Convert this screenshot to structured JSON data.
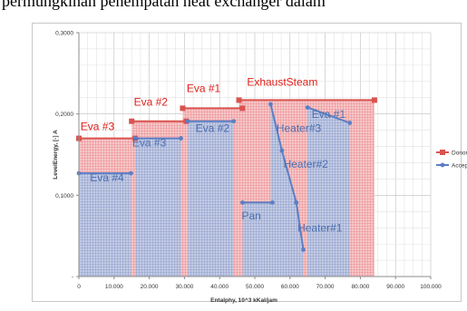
{
  "caption_fragment": "permungkinan penempatan heat exchanger dalam",
  "chart_data": {
    "type": "area",
    "title": "",
    "xlabel": "Entalphy, 10^3 kKal/jam",
    "ylabel": "LevelEnergy, [-] A",
    "xlim": [
      0,
      100000
    ],
    "ylim": [
      0,
      0.3
    ],
    "x_ticks": [
      "0",
      "10.000",
      "20.000",
      "30.000",
      "40.000",
      "50.000",
      "60.000",
      "70.000",
      "80.000",
      "90.000",
      "100.000"
    ],
    "y_ticks": [
      "-",
      "0,1000",
      "0,2000",
      "0,3000"
    ],
    "grid": true,
    "legend_position": "right",
    "colors": {
      "donor": "#d9534f",
      "acceptor": "#5b7fc4",
      "donor_label": "#e0201a",
      "acceptor_label": "#4a6fb0"
    },
    "series": [
      {
        "name": "Donor",
        "segments": [
          {
            "label": "Eva #3",
            "x": [
              0,
              16000
            ],
            "y": [
              0.17,
              0.17
            ]
          },
          {
            "label": "Eva #2",
            "x": [
              15000,
              30500
            ],
            "y": [
              0.191,
              0.191
            ]
          },
          {
            "label": "Eva #1",
            "x": [
              29500,
              46500
            ],
            "y": [
              0.207,
              0.207
            ]
          },
          {
            "label": "ExhaustSteam",
            "x": [
              45500,
              84000
            ],
            "y": [
              0.217,
              0.217
            ]
          }
        ]
      },
      {
        "name": "Acceptor",
        "segments": [
          {
            "label": "Eva #4",
            "x": [
              0,
              14800
            ],
            "y": [
              0.127,
              0.127
            ]
          },
          {
            "label": "Eva #3",
            "x": [
              16000,
              29000
            ],
            "y": [
              0.17,
              0.17
            ]
          },
          {
            "label": "Eva #2",
            "x": [
              31000,
              44000
            ],
            "y": [
              0.191,
              0.191
            ]
          },
          {
            "label": "Pan",
            "x": [
              46500,
              55000
            ],
            "y": [
              0.091,
              0.091
            ]
          },
          {
            "label": "Heater#3",
            "x": [
              54500,
              57700
            ],
            "y": [
              0.212,
              0.155
            ]
          },
          {
            "label": "Heater#2",
            "x": [
              57700,
              61800
            ],
            "y": [
              0.155,
              0.091
            ]
          },
          {
            "label": "Heater#1",
            "x": [
              61800,
              63800
            ],
            "y": [
              0.091,
              0.033
            ]
          },
          {
            "label": "Eva #1",
            "x": [
              65000,
              77000
            ],
            "y": [
              0.208,
              0.189
            ]
          }
        ]
      }
    ]
  }
}
